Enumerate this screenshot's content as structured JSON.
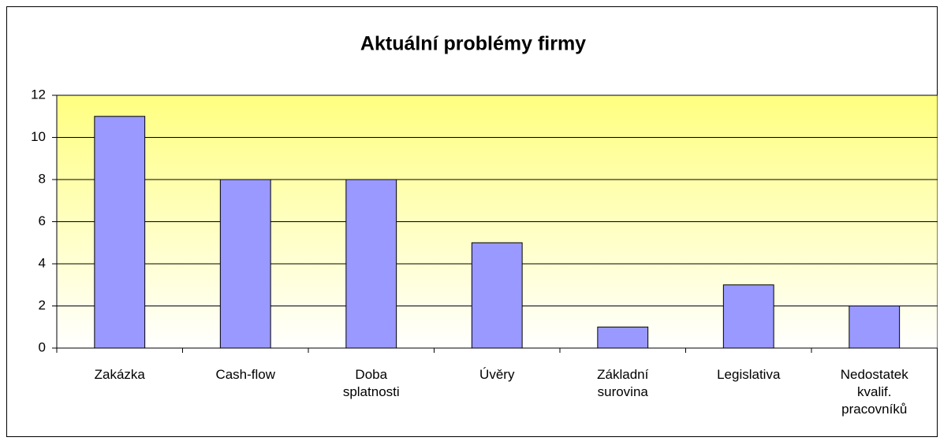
{
  "chart_data": {
    "type": "bar",
    "title": "Aktuální problémy firmy",
    "categories": [
      "Zakázka",
      "Cash-flow",
      "Doba splatnosti",
      "Úvěry",
      "Základní surovina",
      "Legislativa",
      "Nedostatek kvalif. pracovníků"
    ],
    "values": [
      11,
      8,
      8,
      5,
      1,
      3,
      2
    ],
    "color": "#9999ff",
    "ylim": [
      0,
      12
    ],
    "yticks": [
      0,
      2,
      4,
      6,
      8,
      10,
      12
    ],
    "grid": true
  }
}
